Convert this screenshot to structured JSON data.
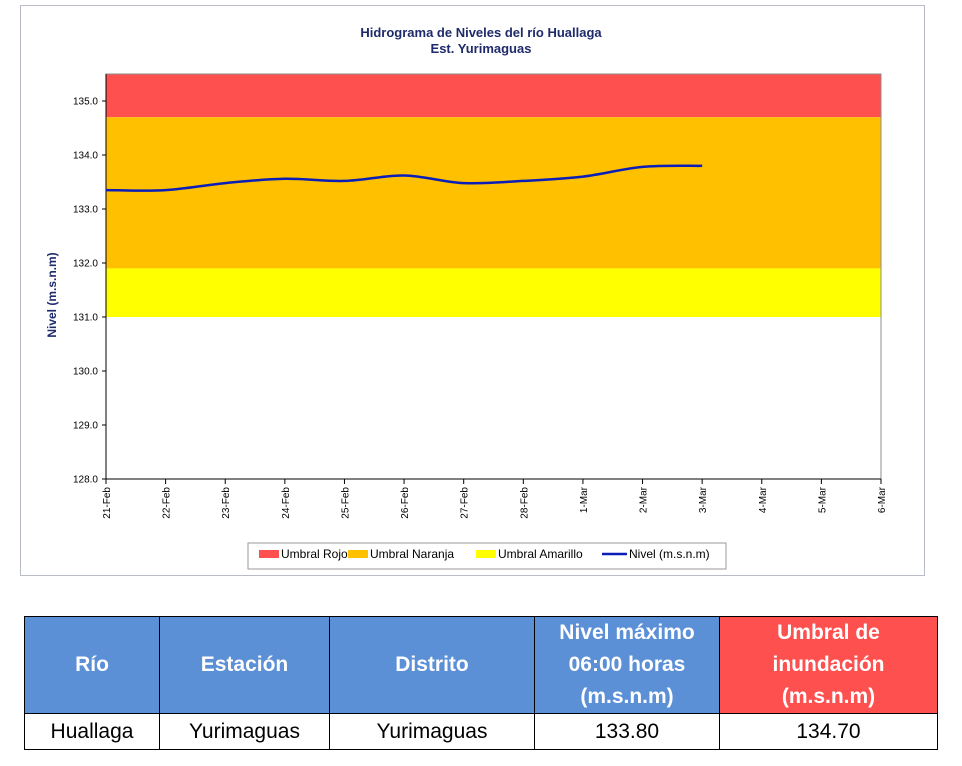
{
  "chart_data": {
    "type": "line",
    "title": "Hidrograma de Niveles del río Huallaga",
    "subtitle": "Est. Yurimaguas",
    "ylabel": "Nivel (m.s.n.m)",
    "xlabel": "",
    "ylim": [
      128.0,
      135.5
    ],
    "y_ticks": [
      "128.0",
      "129.0",
      "130.0",
      "131.0",
      "132.0",
      "133.0",
      "134.0",
      "135.0"
    ],
    "categories": [
      "21-Feb",
      "22-Feb",
      "23-Feb",
      "24-Feb",
      "25-Feb",
      "26-Feb",
      "27-Feb",
      "28-Feb",
      "1-Mar",
      "2-Mar",
      "3-Mar",
      "4-Mar",
      "5-Mar",
      "6-Mar"
    ],
    "thresholds": [
      {
        "name": "Umbral Rojo",
        "from": 134.7,
        "to": 135.5,
        "color": "#ff5050"
      },
      {
        "name": "Umbral Naranja",
        "from": 131.9,
        "to": 134.7,
        "color": "#ffc000"
      },
      {
        "name": "Umbral Amarillo",
        "from": 131.0,
        "to": 131.9,
        "color": "#ffff00"
      }
    ],
    "series": [
      {
        "name": "Nivel (m.s.n.m)",
        "color": "#0b1fb8",
        "values": [
          133.35,
          133.35,
          133.48,
          133.56,
          133.52,
          133.62,
          133.48,
          133.52,
          133.6,
          133.78,
          133.8,
          null,
          null,
          null
        ]
      }
    ],
    "legend": [
      "Umbral Rojo",
      "Umbral Naranja",
      "Umbral Amarillo",
      "Nivel (m.s.n.m)"
    ],
    "legend_position": "bottom"
  },
  "table": {
    "headers": [
      {
        "lines": [
          "Río"
        ],
        "color": "#5b8fd6"
      },
      {
        "lines": [
          "Estación"
        ],
        "color": "#5b8fd6"
      },
      {
        "lines": [
          "Distrito"
        ],
        "color": "#5b8fd6"
      },
      {
        "lines": [
          "Nivel máximo",
          "06:00 horas",
          "(m.s.n.m)"
        ],
        "color": "#5b8fd6"
      },
      {
        "lines": [
          "Umbral de",
          "inundación",
          "(m.s.n.m)"
        ],
        "color": "#ff5050"
      }
    ],
    "row": [
      "Huallaga",
      "Yurimaguas",
      "Yurimaguas",
      "133.80",
      "134.70"
    ]
  }
}
